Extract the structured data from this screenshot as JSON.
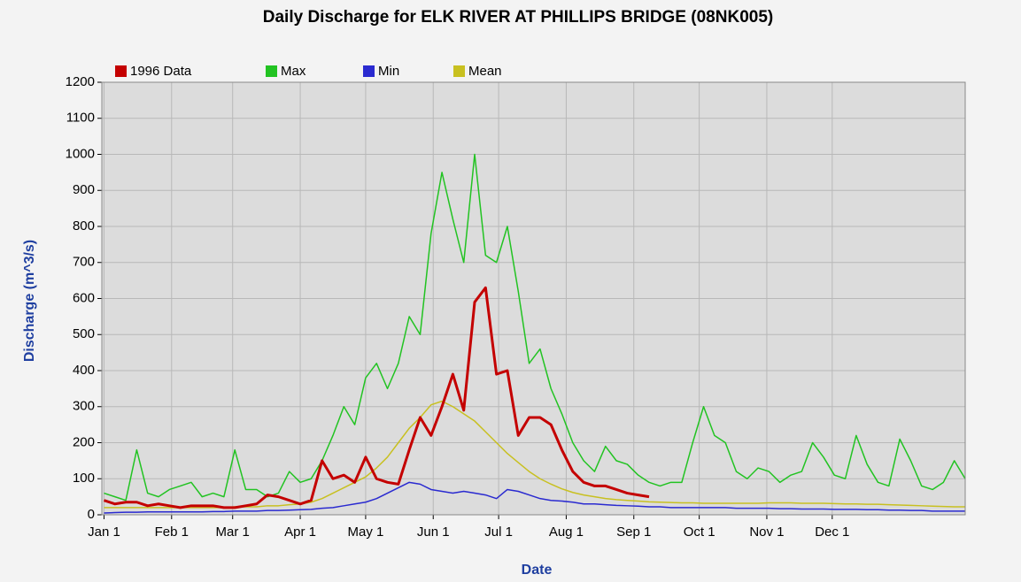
{
  "chart_data": {
    "type": "line",
    "title": "Daily Discharge for ELK RIVER AT PHILLIPS BRIDGE (08NK005)",
    "xlabel": "Date",
    "ylabel": "Discharge (m^3/s)",
    "legend": "top",
    "grid": true,
    "xlim": [
      0,
      396
    ],
    "ylim": [
      0,
      1200
    ],
    "yticks": [
      0,
      100,
      200,
      300,
      400,
      500,
      600,
      700,
      800,
      900,
      1000,
      1100,
      1200
    ],
    "xticks": [
      {
        "value": 1,
        "label": "Jan 1"
      },
      {
        "value": 32,
        "label": "Feb 1"
      },
      {
        "value": 60,
        "label": "Mar 1"
      },
      {
        "value": 91,
        "label": "Apr 1"
      },
      {
        "value": 121,
        "label": "May 1"
      },
      {
        "value": 152,
        "label": "Jun 1"
      },
      {
        "value": 182,
        "label": "Jul 1"
      },
      {
        "value": 213,
        "label": "Aug 1"
      },
      {
        "value": 244,
        "label": "Sep 1"
      },
      {
        "value": 274,
        "label": "Oct 1"
      },
      {
        "value": 305,
        "label": "Nov 1"
      },
      {
        "value": 335,
        "label": "Dec 1"
      }
    ],
    "x": [
      1,
      6,
      11,
      16,
      21,
      26,
      31,
      36,
      41,
      46,
      51,
      56,
      61,
      66,
      71,
      76,
      81,
      86,
      91,
      96,
      101,
      106,
      111,
      116,
      121,
      126,
      131,
      136,
      141,
      146,
      151,
      156,
      161,
      166,
      171,
      176,
      181,
      186,
      191,
      196,
      201,
      206,
      211,
      216,
      221,
      226,
      231,
      236,
      241,
      246,
      251,
      256,
      261,
      266,
      271,
      276,
      281,
      286,
      291,
      296,
      301,
      306,
      311,
      316,
      321,
      326,
      331,
      336,
      341,
      346,
      351,
      356,
      361,
      366,
      371,
      376,
      381,
      386,
      391,
      396
    ],
    "series": [
      {
        "name": "1996 Data",
        "color": "#c40000",
        "width": 3,
        "values": [
          40,
          30,
          35,
          35,
          25,
          30,
          25,
          20,
          25,
          25,
          25,
          20,
          20,
          25,
          30,
          55,
          50,
          40,
          30,
          40,
          150,
          100,
          110,
          90,
          160,
          100,
          90,
          85,
          180,
          270,
          220,
          300,
          390,
          290,
          590,
          630,
          390,
          400,
          220,
          270,
          270,
          250,
          180,
          120,
          90,
          80,
          80,
          70,
          60,
          55,
          50,
          null,
          null,
          null,
          null,
          null,
          null,
          null,
          null,
          null,
          null,
          null,
          null,
          null,
          null,
          null,
          null,
          null,
          null,
          null,
          null,
          null,
          null,
          null,
          null,
          null,
          null,
          null,
          null,
          null
        ]
      },
      {
        "name": "Max",
        "color": "#22c322",
        "width": 1.5,
        "values": [
          60,
          50,
          40,
          180,
          60,
          50,
          70,
          80,
          90,
          50,
          60,
          50,
          180,
          70,
          70,
          50,
          60,
          120,
          90,
          100,
          150,
          220,
          300,
          250,
          380,
          420,
          350,
          420,
          550,
          500,
          780,
          950,
          820,
          700,
          1000,
          720,
          700,
          800,
          620,
          420,
          460,
          350,
          280,
          200,
          150,
          120,
          190,
          150,
          140,
          110,
          90,
          80,
          90,
          90,
          200,
          300,
          220,
          200,
          120,
          100,
          130,
          120,
          90,
          110,
          120,
          200,
          160,
          110,
          100,
          220,
          140,
          90,
          80,
          210,
          150,
          80,
          70,
          90,
          150,
          100
        ]
      },
      {
        "name": "Min",
        "color": "#2a2ad0",
        "width": 1.5,
        "values": [
          5,
          6,
          7,
          7,
          8,
          8,
          8,
          8,
          8,
          8,
          9,
          9,
          10,
          10,
          10,
          12,
          12,
          13,
          14,
          15,
          18,
          20,
          25,
          30,
          35,
          45,
          60,
          75,
          90,
          85,
          70,
          65,
          60,
          65,
          60,
          55,
          45,
          70,
          65,
          55,
          45,
          40,
          38,
          35,
          30,
          30,
          28,
          26,
          25,
          24,
          22,
          22,
          20,
          20,
          20,
          20,
          20,
          20,
          18,
          18,
          18,
          18,
          17,
          17,
          16,
          16,
          16,
          15,
          15,
          15,
          14,
          14,
          13,
          13,
          12,
          12,
          10,
          10,
          10,
          10
        ]
      },
      {
        "name": "Mean",
        "color": "#c8c020",
        "width": 1.5,
        "values": [
          20,
          20,
          20,
          20,
          20,
          20,
          20,
          20,
          20,
          20,
          20,
          20,
          22,
          22,
          22,
          25,
          25,
          28,
          30,
          35,
          45,
          60,
          75,
          90,
          105,
          130,
          160,
          200,
          240,
          270,
          305,
          315,
          300,
          280,
          260,
          230,
          200,
          170,
          145,
          120,
          100,
          85,
          72,
          62,
          55,
          50,
          45,
          42,
          40,
          38,
          36,
          35,
          34,
          33,
          33,
          32,
          32,
          32,
          32,
          32,
          32,
          33,
          33,
          33,
          32,
          32,
          32,
          31,
          30,
          30,
          29,
          29,
          28,
          27,
          26,
          25,
          24,
          23,
          22,
          22
        ]
      }
    ]
  }
}
